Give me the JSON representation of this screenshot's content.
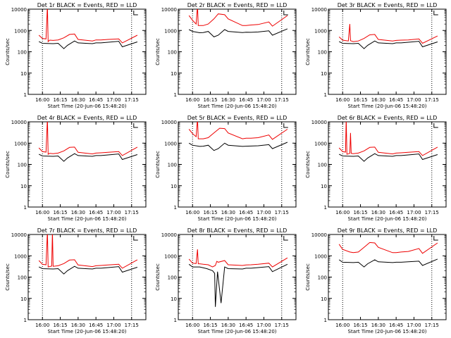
{
  "chart_data": [
    {
      "type": "line",
      "title": "Det 1r BLACK = Events, RED = LLD",
      "ylabel": "Counts/sec",
      "xlabel": "Start Time (20-Jun-06 15:48:20)",
      "yscale": "log",
      "ylim": [
        1,
        10000
      ],
      "x_tick_labels": [
        "16:00",
        "16:15",
        "16:30",
        "16:45",
        "17:00",
        "17:15"
      ],
      "y_tick_labels": [
        "1",
        "10",
        "100",
        "1000",
        "10000"
      ],
      "series": [
        {
          "color": "#000000",
          "x": [
            15.95,
            16.0,
            16.15,
            16.22,
            16.3,
            16.35,
            16.45,
            16.5,
            16.7,
            16.75,
            16.82,
            16.92,
            17.07,
            17.12,
            17.33
          ],
          "y": [
            300,
            250,
            240,
            250,
            140,
            200,
            320,
            260,
            240,
            260,
            260,
            280,
            310,
            170,
            290
          ]
        },
        {
          "color": "#ee0000",
          "x": [
            15.95,
            16.0,
            16.05,
            16.07,
            16.08,
            16.1,
            16.15,
            16.22,
            16.3,
            16.38,
            16.45,
            16.5,
            16.7,
            16.75,
            16.82,
            16.92,
            17.07,
            17.12,
            17.33
          ],
          "y": [
            600,
            420,
            400,
            15000,
            300,
            350,
            340,
            360,
            450,
            650,
            680,
            380,
            320,
            360,
            360,
            380,
            400,
            260,
            600
          ]
        }
      ]
    },
    {
      "type": "line",
      "title": "Det 2r BLACK = Events, RED = LLD",
      "ylabel": "Counts/sec",
      "xlabel": "Start Time (20-Jun-06 15:48:20)",
      "yscale": "log",
      "ylim": [
        1,
        10000
      ],
      "x_tick_labels": [
        "16:00",
        "16:15",
        "16:30",
        "16:45",
        "17:00",
        "17:15"
      ],
      "y_tick_labels": [
        "1",
        "10",
        "100",
        "1000",
        "10000"
      ],
      "series": [
        {
          "color": "#000000",
          "x": [
            15.95,
            16.0,
            16.1,
            16.15,
            16.22,
            16.3,
            16.36,
            16.45,
            16.5,
            16.7,
            16.75,
            16.82,
            16.92,
            17.07,
            17.12,
            17.33
          ],
          "y": [
            1100,
            900,
            780,
            800,
            900,
            500,
            600,
            1100,
            900,
            800,
            830,
            820,
            850,
            960,
            600,
            1200
          ]
        },
        {
          "color": "#ee0000",
          "x": [
            15.95,
            16.0,
            16.05,
            16.07,
            16.08,
            16.1,
            16.15,
            16.22,
            16.3,
            16.36,
            16.45,
            16.5,
            16.7,
            16.75,
            16.82,
            16.92,
            17.07,
            17.12,
            17.33
          ],
          "y": [
            5000,
            3000,
            2000,
            15000,
            1700,
            1700,
            1700,
            2000,
            3500,
            6000,
            5500,
            3500,
            1700,
            1700,
            1800,
            1900,
            2500,
            1600,
            5000
          ]
        }
      ]
    },
    {
      "type": "line",
      "title": "Det 3r BLACK = Events, RED = LLD",
      "ylabel": "Counts/sec",
      "xlabel": "Start Time (20-Jun-06 15:48:20)",
      "yscale": "log",
      "ylim": [
        1,
        10000
      ],
      "x_tick_labels": [
        "16:00",
        "16:15",
        "16:30",
        "16:45",
        "17:00",
        "17:15"
      ],
      "y_tick_labels": [
        "1",
        "10",
        "100",
        "1000",
        "10000"
      ],
      "series": [
        {
          "color": "#000000",
          "x": [
            15.95,
            16.0,
            16.15,
            16.22,
            16.3,
            16.35,
            16.45,
            16.5,
            16.7,
            16.75,
            16.82,
            16.92,
            17.07,
            17.12,
            17.33
          ],
          "y": [
            300,
            250,
            240,
            250,
            140,
            200,
            320,
            260,
            240,
            260,
            260,
            280,
            310,
            170,
            290
          ]
        },
        {
          "color": "#ee0000",
          "x": [
            15.95,
            16.0,
            16.08,
            16.1,
            16.11,
            16.15,
            16.22,
            16.3,
            16.38,
            16.45,
            16.5,
            16.7,
            16.75,
            16.82,
            16.92,
            17.07,
            17.12,
            17.33
          ],
          "y": [
            500,
            350,
            320,
            2000,
            330,
            300,
            320,
            420,
            620,
            650,
            380,
            320,
            340,
            350,
            360,
            400,
            250,
            550
          ]
        }
      ]
    },
    {
      "type": "line",
      "title": "Det 4r BLACK = Events, RED = LLD",
      "ylabel": "Counts/sec",
      "xlabel": "Start Time (20-Jun-06 15:48:20)",
      "yscale": "log",
      "ylim": [
        1,
        10000
      ],
      "x_tick_labels": [
        "16:00",
        "16:15",
        "16:30",
        "16:45",
        "17:00",
        "17:15"
      ],
      "y_tick_labels": [
        "1",
        "10",
        "100",
        "1000",
        "10000"
      ],
      "series": [
        {
          "color": "#000000",
          "x": [
            15.95,
            16.0,
            16.15,
            16.22,
            16.3,
            16.35,
            16.45,
            16.5,
            16.7,
            16.75,
            16.82,
            16.92,
            17.07,
            17.12,
            17.33
          ],
          "y": [
            300,
            250,
            240,
            250,
            140,
            200,
            320,
            260,
            240,
            260,
            260,
            280,
            310,
            170,
            290
          ]
        },
        {
          "color": "#ee0000",
          "x": [
            15.95,
            16.0,
            16.05,
            16.07,
            16.08,
            16.1,
            16.15,
            16.22,
            16.3,
            16.38,
            16.45,
            16.5,
            16.7,
            16.75,
            16.82,
            16.92,
            17.07,
            17.12,
            17.33
          ],
          "y": [
            600,
            400,
            380,
            15000,
            300,
            330,
            320,
            340,
            430,
            630,
            650,
            370,
            310,
            340,
            350,
            370,
            400,
            260,
            650
          ]
        }
      ]
    },
    {
      "type": "line",
      "title": "Det 5r BLACK = Events, RED = LLD",
      "ylabel": "Counts/sec",
      "xlabel": "Start Time (20-Jun-06 15:48:20)",
      "yscale": "log",
      "ylim": [
        1,
        10000
      ],
      "x_tick_labels": [
        "16:00",
        "16:15",
        "16:30",
        "16:45",
        "17:00",
        "17:15"
      ],
      "y_tick_labels": [
        "1",
        "10",
        "100",
        "1000",
        "10000"
      ],
      "series": [
        {
          "color": "#000000",
          "x": [
            15.95,
            16.0,
            16.1,
            16.15,
            16.22,
            16.3,
            16.36,
            16.45,
            16.5,
            16.7,
            16.75,
            16.82,
            16.92,
            17.07,
            17.12,
            17.33
          ],
          "y": [
            1000,
            800,
            700,
            720,
            800,
            450,
            550,
            1000,
            800,
            700,
            720,
            730,
            750,
            850,
            550,
            1100
          ]
        },
        {
          "color": "#ee0000",
          "x": [
            15.95,
            16.0,
            16.05,
            16.07,
            16.08,
            16.1,
            16.15,
            16.22,
            16.3,
            16.38,
            16.45,
            16.5,
            16.7,
            16.75,
            16.82,
            16.92,
            17.07,
            17.12,
            17.33
          ],
          "y": [
            4500,
            2800,
            2000,
            15000,
            1600,
            1600,
            1600,
            1800,
            3000,
            5000,
            4800,
            3000,
            1600,
            1700,
            1700,
            1800,
            2400,
            1500,
            4500
          ]
        }
      ]
    },
    {
      "type": "line",
      "title": "Det 6r BLACK = Events, RED = LLD",
      "ylabel": "Counts/sec",
      "xlabel": "Start Time (20-Jun-06 15:48:20)",
      "yscale": "log",
      "ylim": [
        1,
        10000
      ],
      "x_tick_labels": [
        "16:00",
        "16:15",
        "16:30",
        "16:45",
        "17:00",
        "17:15"
      ],
      "y_tick_labels": [
        "1",
        "10",
        "100",
        "1000",
        "10000"
      ],
      "series": [
        {
          "color": "#000000",
          "x": [
            15.95,
            16.0,
            16.15,
            16.22,
            16.3,
            16.35,
            16.45,
            16.5,
            16.7,
            16.75,
            16.82,
            16.92,
            17.07,
            17.12,
            17.33
          ],
          "y": [
            300,
            250,
            240,
            250,
            140,
            200,
            320,
            260,
            240,
            260,
            260,
            280,
            310,
            170,
            290
          ]
        },
        {
          "color": "#ee0000",
          "x": [
            15.95,
            16.0,
            16.04,
            16.05,
            16.06,
            16.1,
            16.11,
            16.12,
            16.15,
            16.22,
            16.3,
            16.38,
            16.45,
            16.5,
            16.7,
            16.75,
            16.82,
            16.92,
            17.07,
            17.12,
            17.33
          ],
          "y": [
            600,
            400,
            380,
            15000,
            300,
            330,
            3000,
            330,
            320,
            340,
            430,
            630,
            650,
            370,
            310,
            340,
            350,
            370,
            400,
            260,
            650
          ]
        }
      ]
    },
    {
      "type": "line",
      "title": "Det 7r BLACK = Events, RED = LLD",
      "ylabel": "Counts/sec",
      "xlabel": "Start Time (20-Jun-06 15:48:20)",
      "yscale": "log",
      "ylim": [
        1,
        10000
      ],
      "x_tick_labels": [
        "16:00",
        "16:15",
        "16:30",
        "16:45",
        "17:00",
        "17:15"
      ],
      "y_tick_labels": [
        "1",
        "10",
        "100",
        "1000",
        "10000"
      ],
      "series": [
        {
          "color": "#000000",
          "x": [
            15.95,
            16.0,
            16.15,
            16.22,
            16.3,
            16.35,
            16.45,
            16.5,
            16.7,
            16.75,
            16.82,
            16.92,
            17.07,
            17.12,
            17.33
          ],
          "y": [
            300,
            250,
            240,
            250,
            140,
            200,
            320,
            260,
            240,
            260,
            260,
            280,
            310,
            170,
            290
          ]
        },
        {
          "color": "#ee0000",
          "x": [
            15.95,
            16.0,
            16.05,
            16.07,
            16.08,
            16.13,
            16.14,
            16.15,
            16.22,
            16.3,
            16.38,
            16.45,
            16.5,
            16.7,
            16.75,
            16.82,
            16.92,
            17.07,
            17.12,
            17.33
          ],
          "y": [
            600,
            400,
            380,
            15000,
            300,
            330,
            15000,
            320,
            340,
            430,
            630,
            650,
            370,
            310,
            340,
            350,
            370,
            400,
            260,
            650
          ]
        }
      ]
    },
    {
      "type": "line",
      "title": "Det 8r BLACK = Events, RED = LLD",
      "ylabel": "Counts/sec",
      "xlabel": "Start Time (20-Jun-06 15:48:20)",
      "yscale": "log",
      "ylim": [
        1,
        10000
      ],
      "x_tick_labels": [
        "16:00",
        "16:15",
        "16:30",
        "16:45",
        "17:00",
        "17:15"
      ],
      "y_tick_labels": [
        "1",
        "10",
        "100",
        "1000",
        "10000"
      ],
      "series": [
        {
          "color": "#000000",
          "x": [
            15.95,
            16.0,
            16.1,
            16.2,
            16.28,
            16.31,
            16.32,
            16.35,
            16.4,
            16.45,
            16.5,
            16.7,
            16.75,
            16.82,
            16.92,
            17.07,
            17.12,
            17.33
          ],
          "y": [
            400,
            300,
            300,
            250,
            200,
            150,
            4,
            180,
            6,
            300,
            250,
            240,
            260,
            260,
            280,
            310,
            180,
            400
          ]
        },
        {
          "color": "#ee0000",
          "x": [
            15.95,
            16.0,
            16.05,
            16.07,
            16.08,
            16.1,
            16.15,
            16.22,
            16.28,
            16.32,
            16.34,
            16.36,
            16.45,
            16.5,
            16.7,
            16.75,
            16.82,
            16.92,
            17.07,
            17.12,
            17.33
          ],
          "y": [
            700,
            450,
            430,
            2000,
            420,
            420,
            400,
            380,
            300,
            350,
            550,
            500,
            600,
            380,
            350,
            370,
            380,
            400,
            450,
            300,
            800
          ]
        }
      ]
    },
    {
      "type": "line",
      "title": "Det 9r BLACK = Events, RED = LLD",
      "ylabel": "Counts/sec",
      "xlabel": "Start Time (20-Jun-06 15:48:20)",
      "yscale": "log",
      "ylim": [
        1,
        10000
      ],
      "x_tick_labels": [
        "16:00",
        "16:15",
        "16:30",
        "16:45",
        "17:00",
        "17:15"
      ],
      "y_tick_labels": [
        "1",
        "10",
        "100",
        "1000",
        "10000"
      ],
      "series": [
        {
          "color": "#000000",
          "x": [
            15.95,
            16.0,
            16.15,
            16.22,
            16.3,
            16.35,
            16.45,
            16.5,
            16.7,
            16.75,
            16.82,
            16.92,
            17.07,
            17.12,
            17.33
          ],
          "y": [
            650,
            500,
            480,
            500,
            300,
            420,
            650,
            520,
            480,
            500,
            500,
            520,
            560,
            350,
            700
          ]
        },
        {
          "color": "#ee0000",
          "x": [
            15.95,
            16.0,
            16.1,
            16.15,
            16.22,
            16.3,
            16.38,
            16.45,
            16.5,
            16.7,
            16.75,
            16.82,
            16.92,
            17.07,
            17.12,
            17.33
          ],
          "y": [
            3500,
            2000,
            1500,
            1400,
            1500,
            2500,
            4200,
            4000,
            2500,
            1400,
            1400,
            1500,
            1600,
            2200,
            1300,
            4000
          ]
        }
      ]
    }
  ]
}
